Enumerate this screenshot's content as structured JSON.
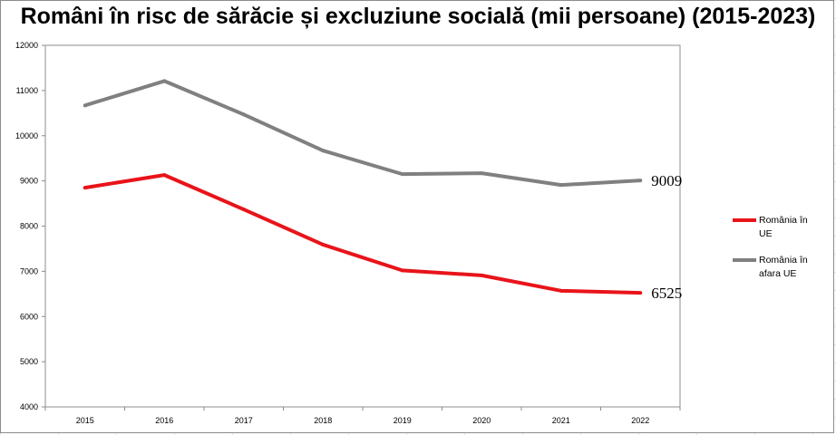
{
  "chart_data": {
    "type": "line",
    "title": "Români în risc de sărăcie și excluziune socială (mii persoane) (2015-2023)",
    "xlabel": "",
    "ylabel": "",
    "categories": [
      "2015",
      "2016",
      "2017",
      "2018",
      "2019",
      "2020",
      "2021",
      "2022"
    ],
    "ylim": [
      4000,
      12000
    ],
    "yticks": [
      4000,
      5000,
      6000,
      7000,
      8000,
      9000,
      10000,
      11000,
      12000
    ],
    "grid": false,
    "legend_position": "right",
    "series": [
      {
        "name": "România în UE",
        "color": "#e8141a",
        "values": [
          8850,
          9130,
          8370,
          7590,
          7020,
          6910,
          6570,
          6525
        ],
        "end_label": "6525"
      },
      {
        "name": "România în afara UE",
        "color": "#808080",
        "values": [
          10670,
          11210,
          10470,
          9670,
          9150,
          9170,
          8910,
          9009
        ],
        "end_label": "9009"
      }
    ]
  }
}
